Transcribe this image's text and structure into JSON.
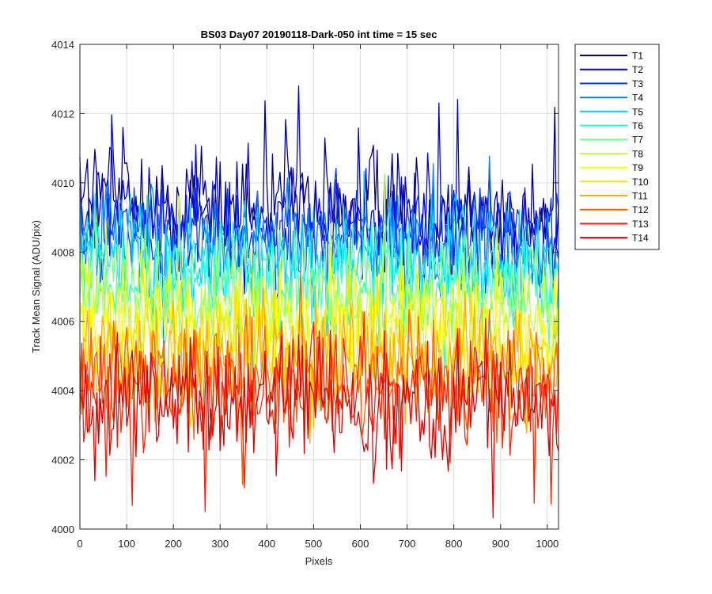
{
  "chart_data": {
    "type": "line",
    "title": "BS03 Day07 20190118-Dark-050 int time = 15 sec",
    "xlabel": "Pixels",
    "ylabel": "Track Mean Signal (ADU/pix)",
    "xlim": [
      0,
      1024
    ],
    "ylim": [
      4000,
      4014
    ],
    "xticks": [
      0,
      100,
      200,
      300,
      400,
      500,
      600,
      700,
      800,
      900,
      1000
    ],
    "yticks": [
      4000,
      4002,
      4004,
      4006,
      4008,
      4010,
      4012,
      4014
    ],
    "grid": true,
    "legend_position": "outside-top-right",
    "x_step": 4,
    "series": [
      {
        "name": "T1",
        "color": "#00008f",
        "mean": 4009.3,
        "trend": [
          0.6,
          -0.6
        ],
        "noise": 0.85
      },
      {
        "name": "T2",
        "color": "#0000df",
        "mean": 4009.0,
        "trend": [
          0.5,
          -0.5
        ],
        "noise": 0.8
      },
      {
        "name": "T3",
        "color": "#0030ff",
        "mean": 4008.6,
        "trend": [
          0.5,
          -0.4
        ],
        "noise": 0.8
      },
      {
        "name": "T4",
        "color": "#0080ff",
        "mean": 4008.2,
        "trend": [
          0.5,
          -0.4
        ],
        "noise": 0.8
      },
      {
        "name": "T5",
        "color": "#00cfff",
        "mean": 4007.8,
        "trend": [
          0.4,
          -0.4
        ],
        "noise": 0.8
      },
      {
        "name": "T6",
        "color": "#20ffdf",
        "mean": 4007.3,
        "trend": [
          0.4,
          -0.3
        ],
        "noise": 0.8
      },
      {
        "name": "T7",
        "color": "#70ff8f",
        "mean": 4006.9,
        "trend": [
          0.3,
          -0.3
        ],
        "noise": 0.8
      },
      {
        "name": "T8",
        "color": "#bfff40",
        "mean": 4006.4,
        "trend": [
          0.3,
          -0.3
        ],
        "noise": 0.8
      },
      {
        "name": "T9",
        "color": "#ffff00",
        "mean": 4005.8,
        "trend": [
          0.3,
          -0.2
        ],
        "noise": 0.85
      },
      {
        "name": "T10",
        "color": "#ffdf00",
        "mean": 4005.3,
        "trend": [
          0.2,
          -0.2
        ],
        "noise": 0.85
      },
      {
        "name": "T11",
        "color": "#ffaf00",
        "mean": 4004.8,
        "trend": [
          0.2,
          -0.2
        ],
        "noise": 0.85
      },
      {
        "name": "T12",
        "color": "#ff6000",
        "mean": 4004.4,
        "trend": [
          0.2,
          -0.1
        ],
        "noise": 0.85
      },
      {
        "name": "T13",
        "color": "#ff2000",
        "mean": 4004.0,
        "trend": [
          0.1,
          -0.1
        ],
        "noise": 0.85
      },
      {
        "name": "T14",
        "color": "#df0000",
        "mean": 4003.7,
        "trend": [
          0.1,
          -0.2
        ],
        "noise": 0.9
      }
    ]
  }
}
